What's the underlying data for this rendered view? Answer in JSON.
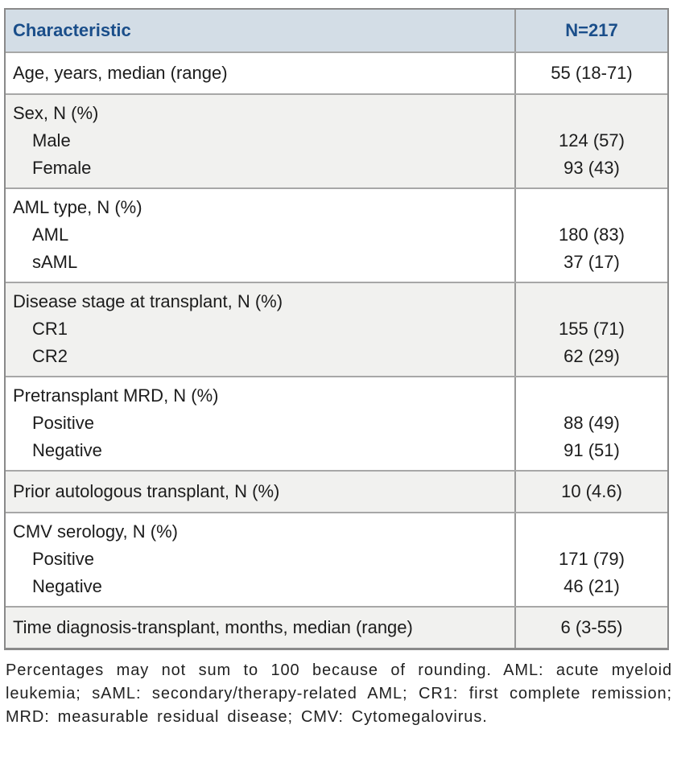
{
  "table": {
    "header": {
      "characteristic": "Characteristic",
      "n": "N=217"
    },
    "rows": [
      {
        "label": "Age, years, median (range)",
        "value": "55 (18-71)"
      },
      {
        "label": "Sex, N (%)",
        "sub": [
          {
            "label": "Male",
            "value": "124 (57)"
          },
          {
            "label": "Female",
            "value": "93 (43)"
          }
        ]
      },
      {
        "label": "AML type, N (%)",
        "sub": [
          {
            "label": "AML",
            "value": "180 (83)"
          },
          {
            "label": "sAML",
            "value": "37 (17)"
          }
        ]
      },
      {
        "label": "Disease stage at transplant, N (%)",
        "sub": [
          {
            "label": "CR1",
            "value": "155 (71)"
          },
          {
            "label": "CR2",
            "value": "62 (29)"
          }
        ]
      },
      {
        "label": "Pretransplant MRD, N (%)",
        "sub": [
          {
            "label": "Positive",
            "value": "88 (49)"
          },
          {
            "label": "Negative",
            "value": "91 (51)"
          }
        ]
      },
      {
        "label": "Prior autologous transplant, N (%)",
        "value": "10 (4.6)"
      },
      {
        "label": "CMV serology, N (%)",
        "sub": [
          {
            "label": "Positive",
            "value": "171 (79)"
          },
          {
            "label": "Negative",
            "value": "46 (21)"
          }
        ]
      },
      {
        "label": "Time diagnosis-transplant, months, median (range)",
        "value": "6 (3-55)"
      }
    ]
  },
  "footnote": "Percentages may not sum to 100 because of rounding.  AML: acute myeloid leukemia; sAML: secondary/therapy-related AML; CR1: first complete remission; MRD: measurable residual disease; CMV: Cytomegalovirus.",
  "colors": {
    "header_bg": "#d3dde6",
    "header_text": "#1a4e8a",
    "row_alt_bg": "#f1f1ef",
    "outer_border": "#8a8a8a",
    "inner_border": "#a7a7a7"
  }
}
